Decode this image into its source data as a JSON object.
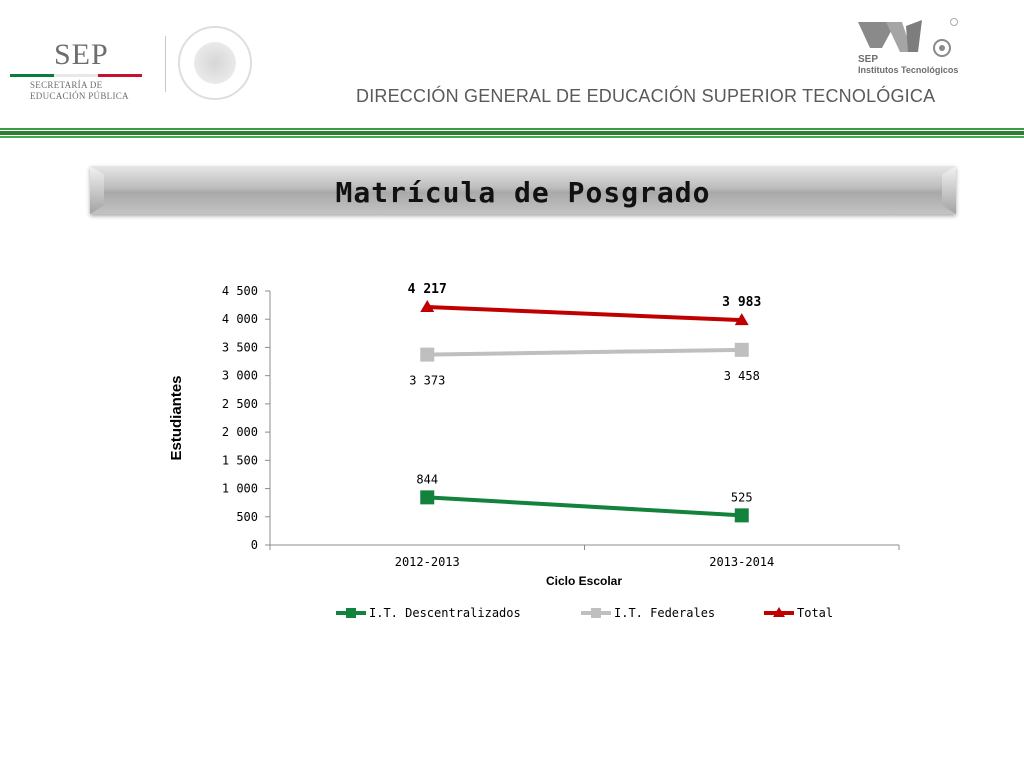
{
  "header": {
    "sep_word": "SEP",
    "sep_sub_line1": "SECRETARÍA DE",
    "sep_sub_line2": "EDUCACIÓN PÚBLICA",
    "it_sep": "SEP",
    "it_name": "Institutos Tecnológicos",
    "title": "DIRECCIÓN GENERAL DE EDUCACIÓN SUPERIOR TECNOLÓGICA",
    "colors": {
      "flag_green": "#0a7a3e",
      "flag_white": "#ffffff",
      "flag_red": "#c8102e",
      "band_green": "#2d7d36"
    }
  },
  "slide": {
    "title": "Matrícula de Posgrado"
  },
  "chart_data": {
    "type": "line",
    "categories": [
      "2012-2013",
      "2013-2014"
    ],
    "series": [
      {
        "name": "I.T. Descentralizados",
        "values": [
          844,
          525
        ],
        "labels": [
          "844",
          "525"
        ],
        "color": "#12823c",
        "marker": "square",
        "label_pos": "above"
      },
      {
        "name": "I.T. Federales",
        "values": [
          3373,
          3458
        ],
        "labels": [
          "3 373",
          "3 458"
        ],
        "color": "#bfbfbf",
        "marker": "square",
        "label_pos": "below"
      },
      {
        "name": "Total",
        "values": [
          4217,
          3983
        ],
        "labels": [
          "4 217",
          "3 983"
        ],
        "color": "#c00000",
        "marker": "triangle",
        "label_pos": "above"
      }
    ],
    "xlabel": "Ciclo Escolar",
    "ylabel": "Estudiantes",
    "ylim": [
      0,
      4500
    ],
    "yticks": [
      0,
      500,
      1000,
      1500,
      2000,
      2500,
      3000,
      3500,
      4000,
      4500
    ],
    "ytick_labels": [
      "0",
      "500",
      "1 000",
      "1 500",
      "2 000",
      "2 500",
      "3 000",
      "3 500",
      "4 000",
      "4 500"
    ],
    "grid": false,
    "legend": "bottom"
  }
}
